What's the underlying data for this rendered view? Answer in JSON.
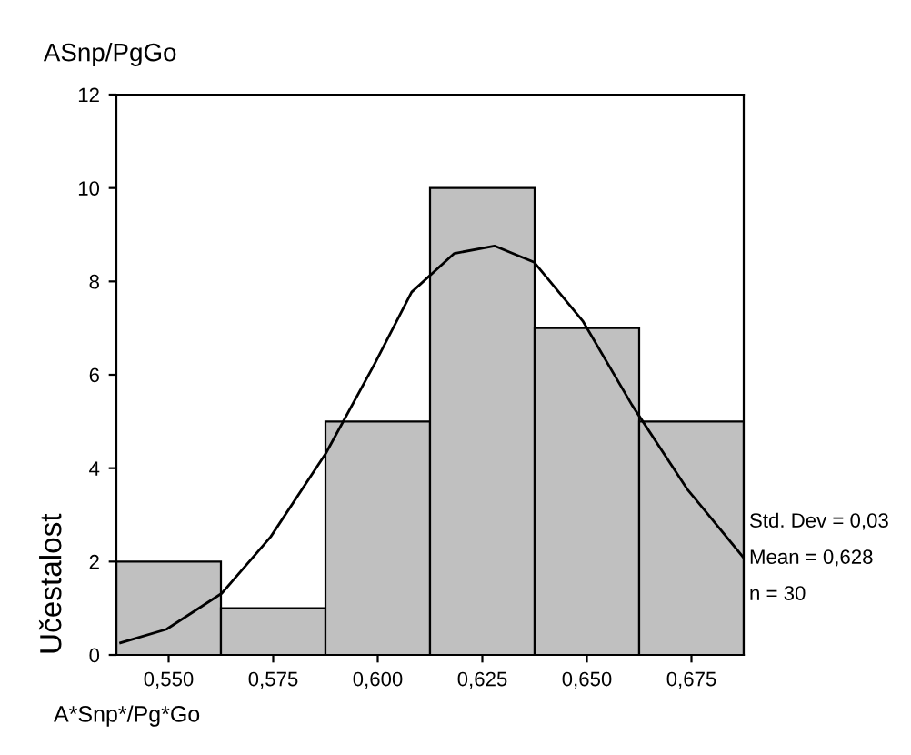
{
  "chart_data": {
    "type": "histogram",
    "title": "ASnp/PgGo",
    "xlabel": "A*Snp*/Pg*Go",
    "ylabel": "Učestalost",
    "series": [
      {
        "color": "#c0c0c0",
        "bins": [
          0.5375,
          0.5625,
          0.5875,
          0.6125,
          0.6375,
          0.6625,
          0.6875
        ],
        "values": [
          2,
          1,
          5,
          10,
          7,
          5
        ]
      },
      {
        "type": "line",
        "color": "#000000",
        "x": [
          0.5385,
          0.5495,
          0.5627,
          0.5744,
          0.5876,
          0.5993,
          0.6081,
          0.6183,
          0.6279,
          0.6374,
          0.6491,
          0.6608,
          0.674,
          0.6875
        ],
        "values": [
          0.26,
          0.55,
          1.32,
          2.53,
          4.32,
          6.24,
          7.77,
          8.6,
          8.76,
          8.41,
          7.14,
          5.35,
          3.55,
          2.08
        ]
      }
    ],
    "xlim": [
      0.5375,
      0.6875
    ],
    "ylim": [
      0,
      12
    ],
    "xticks": [
      {
        "value": 0.55,
        "label": "0,550"
      },
      {
        "value": 0.575,
        "label": "0,575"
      },
      {
        "value": 0.6,
        "label": "0,600"
      },
      {
        "value": 0.625,
        "label": "0,625"
      },
      {
        "value": 0.65,
        "label": "0,650"
      },
      {
        "value": 0.675,
        "label": "0,675"
      }
    ],
    "yticks": [
      0,
      2,
      4,
      6,
      8,
      10,
      12
    ],
    "annotations": [
      "Std. Dev = 0,03",
      "Mean = 0,628",
      "n = 30"
    ]
  }
}
